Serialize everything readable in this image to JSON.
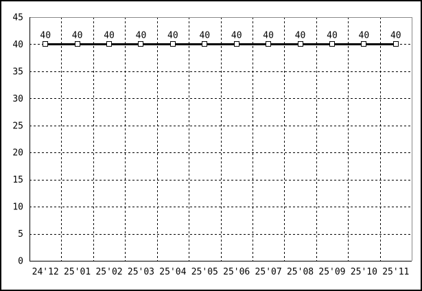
{
  "chart_data": {
    "type": "line",
    "title": "",
    "xlabel": "",
    "ylabel": "",
    "categories": [
      "24'12",
      "25'01",
      "25'02",
      "25'03",
      "25'04",
      "25'05",
      "25'06",
      "25'07",
      "25'08",
      "25'09",
      "25'10",
      "25'11"
    ],
    "series": [
      {
        "name": "value",
        "values": [
          40,
          40,
          40,
          40,
          40,
          40,
          40,
          40,
          40,
          40,
          40,
          40
        ],
        "point_labels": [
          "40",
          "40",
          "40",
          "40",
          "40",
          "40",
          "40",
          "40",
          "40",
          "40",
          "40",
          "40"
        ]
      }
    ],
    "ylim": [
      0,
      45
    ],
    "ytick_step": 5,
    "ytick_labels": [
      "0",
      "5",
      "10",
      "15",
      "20",
      "25",
      "30",
      "35",
      "40",
      "45"
    ],
    "grid": "dashed",
    "legend": "none",
    "colors": {
      "background": "#ffffff",
      "text": "#000000",
      "grid": "#000000",
      "axis_dark": "#000000",
      "axis_light": "#888888",
      "line": "#000000",
      "marker_fill": "#ffffff",
      "marker_stroke": "#000000"
    }
  }
}
